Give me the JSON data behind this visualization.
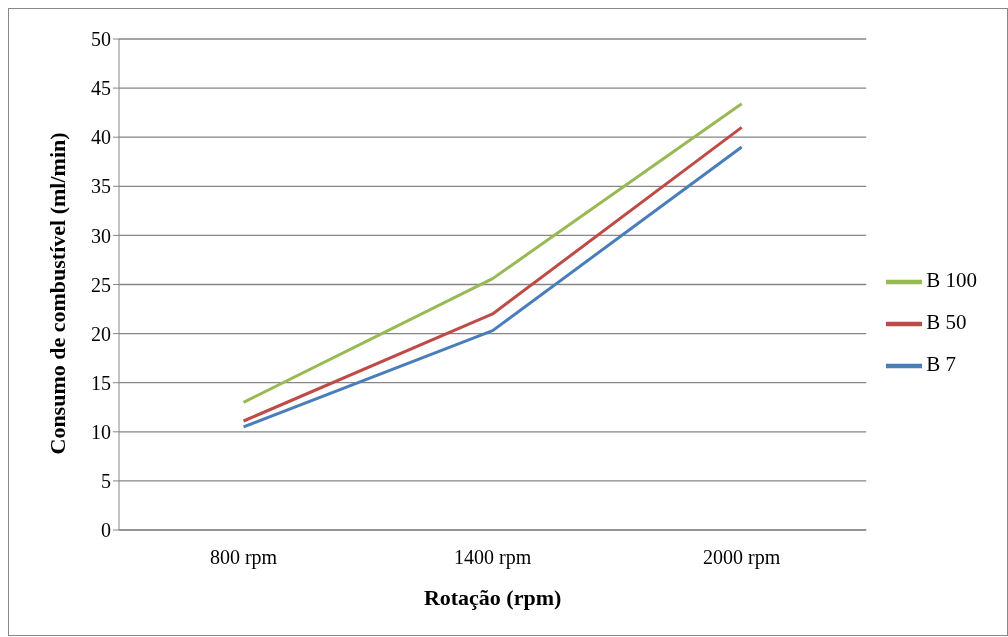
{
  "chart_data": {
    "type": "line",
    "xlabel": "Rotação (rpm)",
    "ylabel": "Consumo de combustível (ml/min)",
    "categories": [
      "800 rpm",
      "1400 rpm",
      "2000 rpm"
    ],
    "series": [
      {
        "name": "B 7",
        "color": "#4a7ebb",
        "values": [
          10.5,
          20.3,
          39.0
        ]
      },
      {
        "name": "B 50",
        "color": "#be4b48",
        "values": [
          11.1,
          22.0,
          41.0
        ]
      },
      {
        "name": "B 100",
        "color": "#98b954",
        "values": [
          13.0,
          25.6,
          43.4
        ]
      }
    ],
    "ylim": [
      0,
      50
    ],
    "yticks": [
      0,
      5,
      10,
      15,
      20,
      25,
      30,
      35,
      40,
      45,
      50
    ],
    "grid": "y",
    "legend": "right",
    "marker": "none",
    "line_style": "solid"
  }
}
